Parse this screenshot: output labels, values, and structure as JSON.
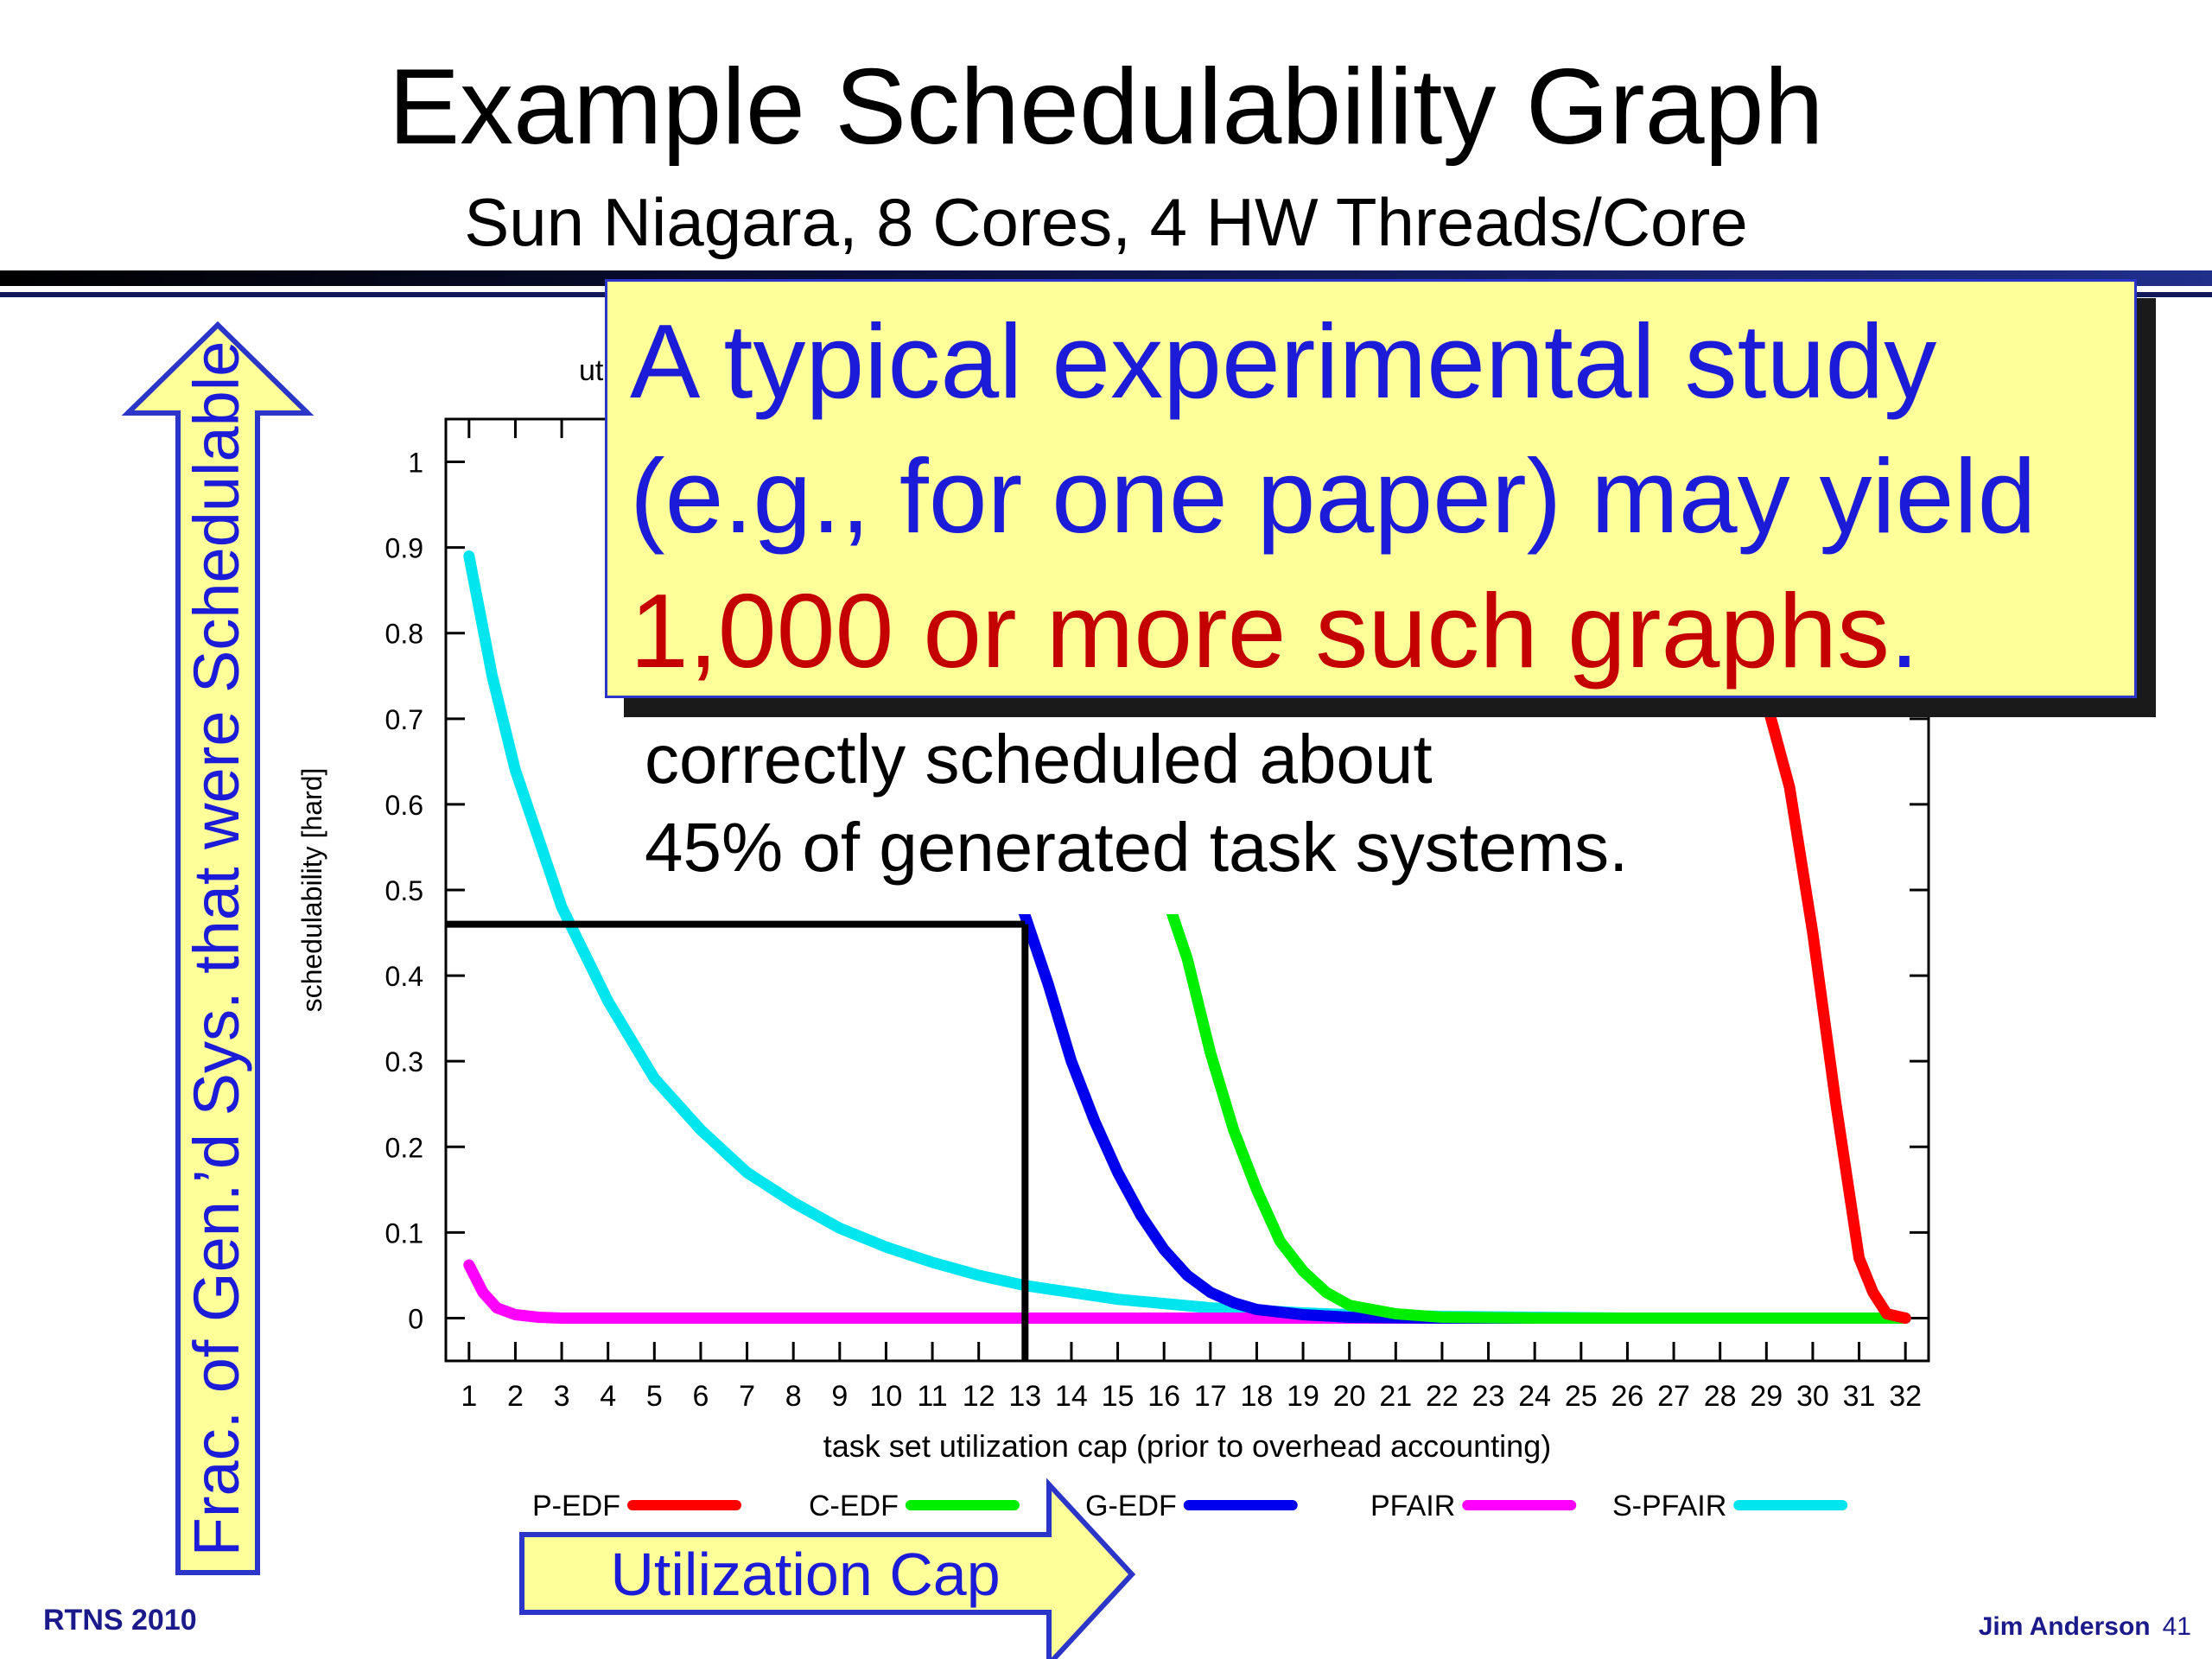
{
  "slide": {
    "title": "Example Schedulability Graph",
    "subtitle": "Sun Niagara, 8 Cores, 4 HW Threads/Core",
    "footer_left": "RTNS 2010",
    "footer_author": "Jim Anderson",
    "page_number": "41"
  },
  "callout": {
    "line1": "A typical experimental study",
    "line2": "(e.g., for one paper) may yield",
    "line3_red": "1,000 or more such graphs",
    "line3_end": "."
  },
  "annotation": {
    "line1": "correctly scheduled about",
    "line2": "45% of generated task systems."
  },
  "arrows": {
    "vertical_label": "Frac. of Gen.’d Sys. that were Schedulable",
    "horizontal_label": "Utilization Cap",
    "fill_color": "#ffff99",
    "text_color": "#1c1cd8"
  },
  "chart_data": {
    "type": "line",
    "title_fragment": "ut",
    "xlabel": "task set utilization cap (prior to overhead accounting)",
    "ylabel": "schedulability  [hard]",
    "xlim": [
      0.5,
      32.5
    ],
    "ylim": [
      -0.05,
      1.05
    ],
    "xticks": [
      1,
      2,
      3,
      4,
      5,
      6,
      7,
      8,
      9,
      10,
      11,
      12,
      13,
      14,
      15,
      16,
      17,
      18,
      19,
      20,
      21,
      22,
      23,
      24,
      25,
      26,
      27,
      28,
      29,
      30,
      31,
      32
    ],
    "yticks": [
      0,
      0.1,
      0.2,
      0.3,
      0.4,
      0.5,
      0.6,
      0.7,
      0.8,
      0.9,
      1
    ],
    "ytick_labels": [
      "0",
      "0.1",
      "0.2",
      "0.3",
      "0.4",
      "0.5",
      "0.6",
      "0.7",
      "0.8",
      "0.9",
      "1"
    ],
    "legend_position": "bottom",
    "series": [
      {
        "name": "P-EDF",
        "color": "#ff0000",
        "x": [
          29,
          29.5,
          30,
          30.5,
          31,
          31.3,
          31.6,
          32
        ],
        "y": [
          0.72,
          0.62,
          0.45,
          0.25,
          0.07,
          0.03,
          0.005,
          0
        ]
      },
      {
        "name": "C-EDF",
        "color": "#00ee00",
        "x": [
          16,
          16.5,
          17,
          17.5,
          18,
          18.5,
          19,
          19.5,
          20,
          21,
          22,
          24,
          26,
          28,
          30,
          32
        ],
        "y": [
          0.5,
          0.42,
          0.31,
          0.22,
          0.15,
          0.09,
          0.055,
          0.03,
          0.015,
          0.005,
          0.001,
          0,
          0,
          0,
          0,
          0
        ]
      },
      {
        "name": "G-EDF",
        "color": "#0000ee",
        "x": [
          12.8,
          13,
          13.5,
          14,
          14.5,
          15,
          15.5,
          16,
          16.5,
          17,
          17.5,
          18,
          19,
          20,
          22,
          24,
          26,
          28,
          30,
          32
        ],
        "y": [
          0.5,
          0.47,
          0.39,
          0.3,
          0.23,
          0.17,
          0.12,
          0.08,
          0.05,
          0.03,
          0.018,
          0.01,
          0.004,
          0.001,
          0,
          0,
          0,
          0,
          0,
          0
        ]
      },
      {
        "name": "PFAIR",
        "color": "#ff00ff",
        "x": [
          1,
          1.3,
          1.6,
          2,
          2.5,
          3,
          4,
          6,
          8,
          10,
          12,
          14,
          16,
          18,
          20,
          22,
          24,
          26,
          28,
          30,
          32
        ],
        "y": [
          0.062,
          0.03,
          0.012,
          0.004,
          0.001,
          0,
          0,
          0,
          0,
          0,
          0,
          0,
          0,
          0,
          0,
          0,
          0,
          0,
          0,
          0,
          0
        ]
      },
      {
        "name": "S-PFAIR",
        "color": "#00e5ee",
        "x": [
          1,
          1.5,
          2,
          3,
          4,
          5,
          6,
          7,
          8,
          9,
          10,
          11,
          12,
          13,
          14,
          15,
          16,
          17,
          18,
          19,
          20,
          22,
          24,
          26,
          28,
          30,
          32
        ],
        "y": [
          0.89,
          0.75,
          0.64,
          0.48,
          0.37,
          0.28,
          0.22,
          0.17,
          0.135,
          0.105,
          0.083,
          0.065,
          0.05,
          0.038,
          0.03,
          0.022,
          0.017,
          0.012,
          0.009,
          0.006,
          0.004,
          0.002,
          0.001,
          0,
          0,
          0,
          0
        ]
      }
    ],
    "annotation_marker": {
      "x": 13,
      "y": 0.46
    }
  }
}
